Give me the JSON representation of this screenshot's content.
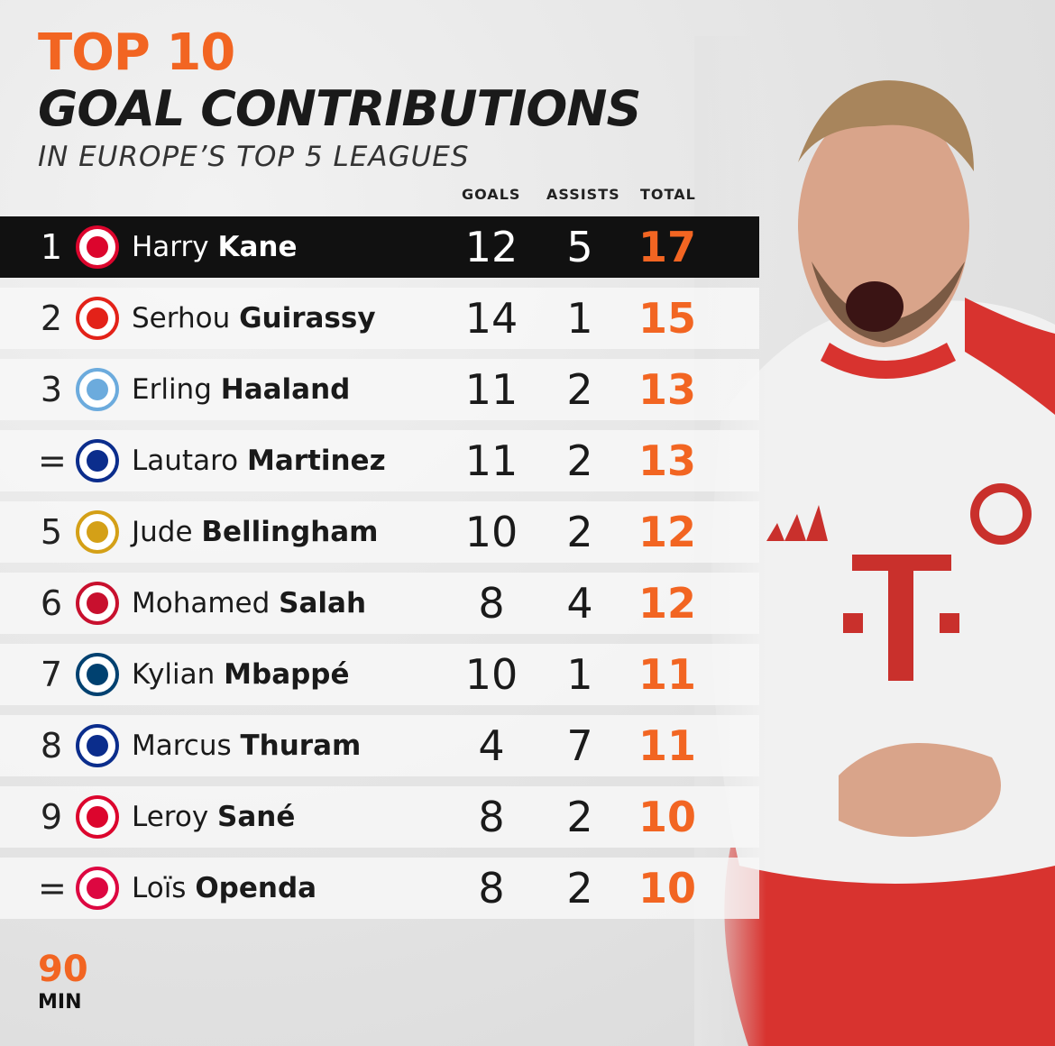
{
  "header": {
    "title_line1": "TOP 10",
    "title_line2": "GOAL CONTRIBUTIONS",
    "subtitle": "IN EUROPE’S TOP 5 LEAGUES"
  },
  "columns": {
    "goals": "GOALS",
    "assists": "ASSISTS",
    "total": "TOTAL"
  },
  "rows": [
    {
      "rank": "1",
      "first": "Harry",
      "last": "Kane",
      "goals": "12",
      "assists": "5",
      "total": "17",
      "club": "bayern-badge",
      "color": "#dc052d"
    },
    {
      "rank": "2",
      "first": "Serhou",
      "last": "Guirassy",
      "goals": "14",
      "assists": "1",
      "total": "15",
      "club": "stuttgart-badge",
      "color": "#e32219"
    },
    {
      "rank": "3",
      "first": "Erling",
      "last": "Haaland",
      "goals": "11",
      "assists": "2",
      "total": "13",
      "club": "man-city-badge",
      "color": "#6cabdd"
    },
    {
      "rank": "=",
      "first": "Lautaro",
      "last": "Martinez",
      "goals": "11",
      "assists": "2",
      "total": "13",
      "club": "inter-badge",
      "color": "#0b2d8c"
    },
    {
      "rank": "5",
      "first": "Jude",
      "last": "Bellingham",
      "goals": "10",
      "assists": "2",
      "total": "12",
      "club": "real-madrid-badge",
      "color": "#d4a017"
    },
    {
      "rank": "6",
      "first": "Mohamed",
      "last": "Salah",
      "goals": "8",
      "assists": "4",
      "total": "12",
      "club": "liverpool-badge",
      "color": "#c8102e"
    },
    {
      "rank": "7",
      "first": "Kylian",
      "last": "Mbappé",
      "goals": "10",
      "assists": "1",
      "total": "11",
      "club": "psg-badge",
      "color": "#004170"
    },
    {
      "rank": "8",
      "first": "Marcus",
      "last": "Thuram",
      "goals": "4",
      "assists": "7",
      "total": "11",
      "club": "inter-badge",
      "color": "#0b2d8c"
    },
    {
      "rank": "9",
      "first": "Leroy",
      "last": "Sané",
      "goals": "8",
      "assists": "2",
      "total": "10",
      "club": "bayern-badge",
      "color": "#dc052d"
    },
    {
      "rank": "=",
      "first": "Loïs",
      "last": "Openda",
      "goals": "8",
      "assists": "2",
      "total": "10",
      "club": "leipzig-badge",
      "color": "#dd0741"
    }
  ],
  "brand": {
    "line1": "90",
    "line2": "MIN",
    "accent": "#f26522"
  }
}
